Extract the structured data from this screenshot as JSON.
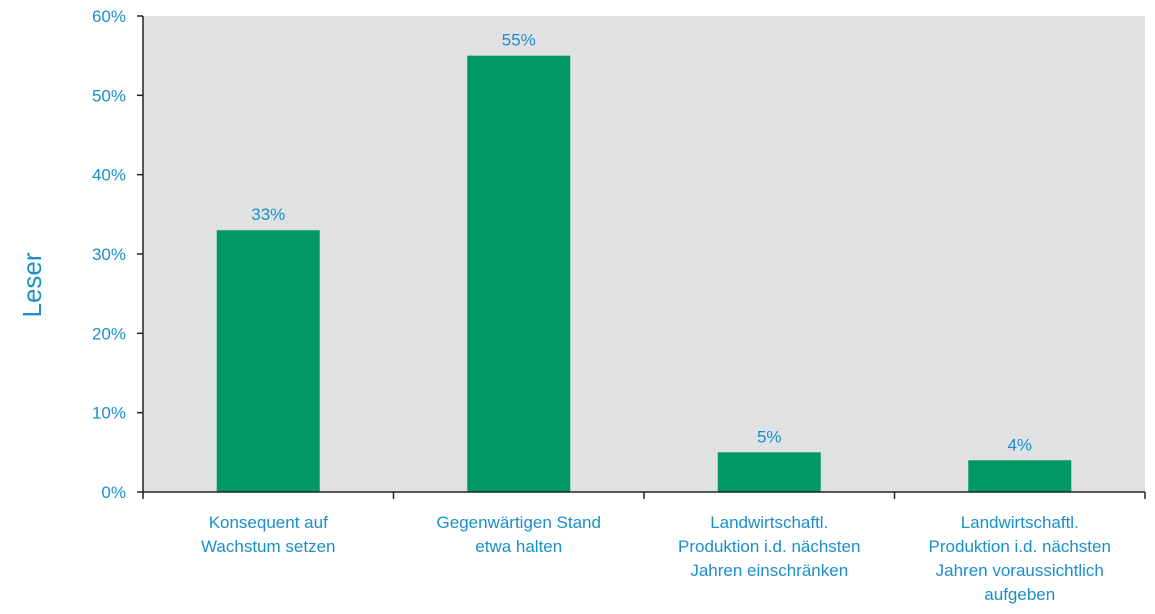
{
  "chart_data": {
    "type": "bar",
    "ylabel": "Leser",
    "categories": [
      [
        "Konsequent auf",
        "Wachstum setzen"
      ],
      [
        "Gegenwärtigen Stand",
        "etwa halten"
      ],
      [
        "Landwirtschaftl.",
        "Produktion i.d. nächsten",
        "Jahren einschränken"
      ],
      [
        "Landwirtschaftl.",
        "Produktion i.d. nächsten",
        "Jahren voraussichtlich",
        "aufgeben"
      ]
    ],
    "values": [
      33,
      55,
      5,
      4
    ],
    "data_labels": [
      "33%",
      "55%",
      "5%",
      "4%"
    ],
    "ylim": [
      0,
      60
    ],
    "yticks": [
      0,
      10,
      20,
      30,
      40,
      50,
      60
    ],
    "ytick_labels": [
      "0%",
      "10%",
      "20%",
      "30%",
      "40%",
      "50%",
      "60%"
    ],
    "grid": false,
    "colors": {
      "bar": "#009966",
      "plot_background": "#e0e1e3",
      "text": "#1a8fc9",
      "axis": "#222222"
    }
  }
}
